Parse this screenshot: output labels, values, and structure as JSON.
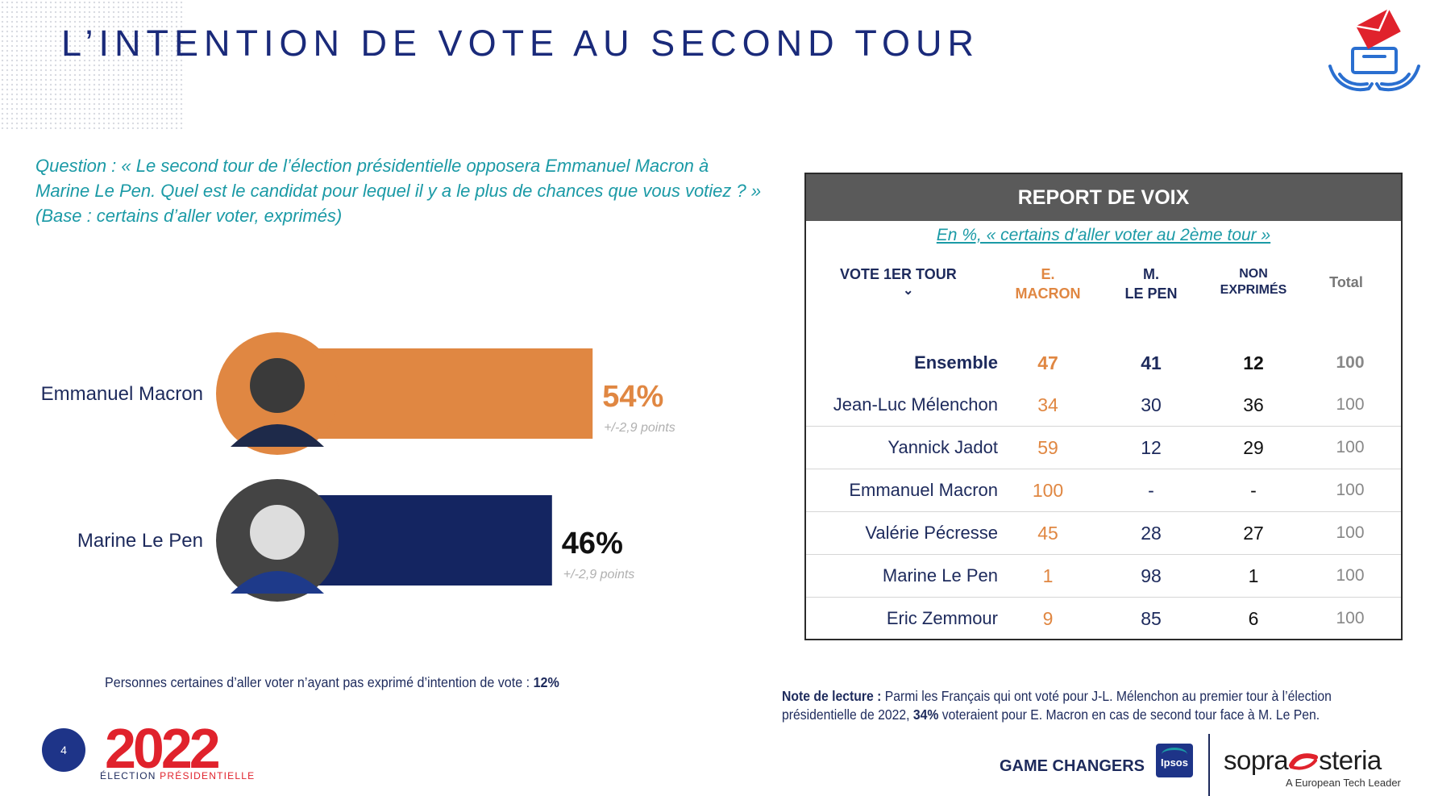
{
  "title": "L’INTENTION DE VOTE AU SECOND TOUR",
  "question": {
    "line1": "Question : « Le second tour de l’élection présidentielle opposera Emmanuel Macron à",
    "line2": "Marine Le Pen. Quel est le candidat pour lequel il y a le plus de chances que vous votiez ? »",
    "line3": "(Base : certains d’aller voter, exprimés)"
  },
  "chart_data": {
    "type": "bar",
    "orientation": "horizontal",
    "categories": [
      "Emmanuel Macron",
      "Marine Le Pen"
    ],
    "values": [
      54,
      46
    ],
    "value_labels": [
      "54%",
      "46%"
    ],
    "margins": [
      "+/-2,9 points",
      "+/-2,9 points"
    ],
    "colors": [
      "#e08742",
      "#142561"
    ],
    "label_colors": [
      "#e08742",
      "#111111"
    ],
    "unit": "%"
  },
  "footnote_left": {
    "text": "Personnes certaines d’aller voter n’ayant pas exprimé d’intention de vote : ",
    "value": "12%"
  },
  "report": {
    "header": "REPORT DE VOIX",
    "subtitle": "En %, « certains d’aller voter au 2ème tour »",
    "col_first": "VOTE 1ER TOUR",
    "col_first_arrow": "⌄",
    "col_macron_1": "E.",
    "col_macron_2": "MACRON",
    "col_lepen_1": "M.",
    "col_lepen_2": "LE PEN",
    "col_non_1": "NON",
    "col_non_2": "EXPRIMÉS",
    "col_total": "Total",
    "rows": [
      {
        "name": "Ensemble",
        "macron": "47",
        "lepen": "41",
        "non": "12",
        "total": "100"
      },
      {
        "name": "Jean-Luc Mélenchon",
        "macron": "34",
        "lepen": "30",
        "non": "36",
        "total": "100"
      },
      {
        "name": "Yannick Jadot",
        "macron": "59",
        "lepen": "12",
        "non": "29",
        "total": "100"
      },
      {
        "name": "Emmanuel Macron",
        "macron": "100",
        "lepen": "-",
        "non": "-",
        "total": "100"
      },
      {
        "name": "Valérie Pécresse",
        "macron": "45",
        "lepen": "28",
        "non": "27",
        "total": "100"
      },
      {
        "name": "Marine Le Pen",
        "macron": "1",
        "lepen": "98",
        "non": "1",
        "total": "100"
      },
      {
        "name": "Eric Zemmour",
        "macron": "9",
        "lepen": "85",
        "non": "6",
        "total": "100"
      }
    ]
  },
  "note": {
    "label": "Note de lecture :",
    "text1": " Parmi les Français qui ont voté pour J-L. Mélenchon au premier tour à l’élection présidentielle de 2022, ",
    "value": "34%",
    "text2": " voteraient pour E. Macron en cas de second tour face à M. Le Pen."
  },
  "footer": {
    "page_number": "4",
    "logo_year": "2022",
    "logo_sub_1": "ÉLECTION",
    "logo_sub_2": "PRÉSIDENTIELLE",
    "game_changers": "GAME CHANGERS",
    "ipsos": "Ipsos",
    "sopra_1": "sopra",
    "sopra_2": "steria",
    "sopra_tag": "A European Tech Leader"
  }
}
